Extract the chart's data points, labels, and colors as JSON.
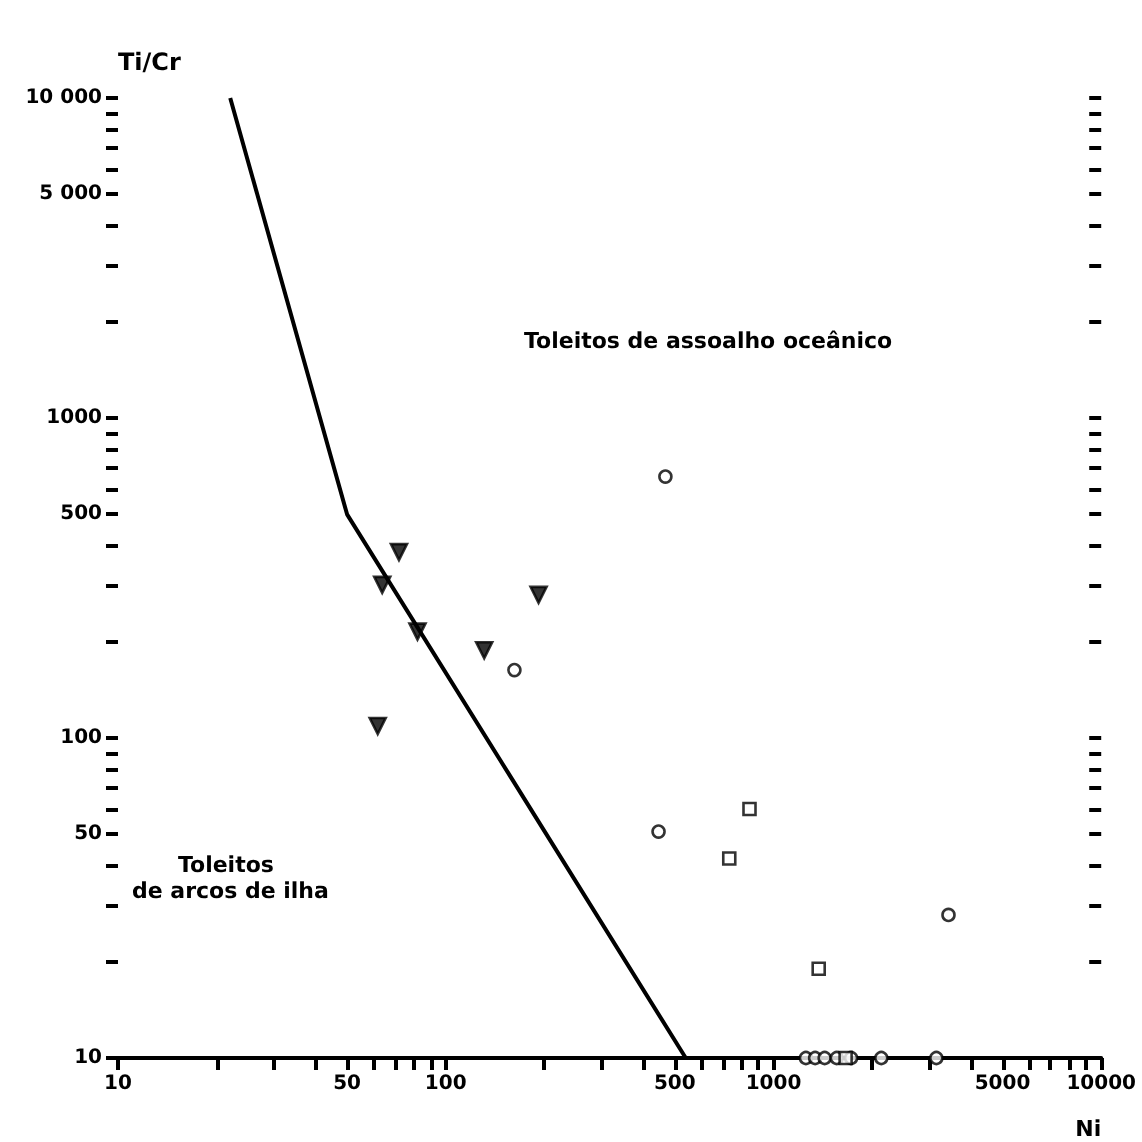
{
  "chart_data": {
    "type": "scatter",
    "xlabel": "Ni",
    "ylabel": "Ti/Cr",
    "annotations": [
      "Toleitos de assoalho oceânico",
      "Toleitos\nde arcos de ilha"
    ],
    "log": "xy",
    "grid": false,
    "xlim": [
      10,
      10000
    ],
    "ylim": [
      10,
      10000
    ],
    "xticks": [
      10,
      {
        "value": 20,
        "label": null
      },
      {
        "value": 30,
        "label": null
      },
      {
        "value": 40,
        "label": null
      },
      50,
      {
        "value": 60,
        "label": null
      },
      {
        "value": 70,
        "label": null
      },
      {
        "value": 80,
        "label": null
      },
      {
        "value": 90,
        "label": null
      },
      100,
      {
        "value": 200,
        "label": null
      },
      {
        "value": 300,
        "label": null
      },
      {
        "value": 400,
        "label": null
      },
      500,
      {
        "value": 600,
        "label": null
      },
      {
        "value": 700,
        "label": null
      },
      {
        "value": 800,
        "label": null
      },
      {
        "value": 900,
        "label": null
      },
      1000,
      {
        "value": 2000,
        "label": null
      },
      {
        "value": 3000,
        "label": null
      },
      {
        "value": 4000,
        "label": null
      },
      5000,
      {
        "value": 6000,
        "label": null
      },
      {
        "value": 7000,
        "label": null
      },
      {
        "value": 8000,
        "label": null
      },
      {
        "value": 9000,
        "label": null
      },
      10000
    ],
    "yticks": [
      10,
      {
        "value": 20,
        "label": null
      },
      {
        "value": 30,
        "label": null
      },
      {
        "value": 40,
        "label": null
      },
      50,
      {
        "value": 60,
        "label": null
      },
      {
        "value": 70,
        "label": null
      },
      {
        "value": 80,
        "label": null
      },
      {
        "value": 90,
        "label": null
      },
      100,
      {
        "value": 200,
        "label": null
      },
      {
        "value": 300,
        "label": null
      },
      {
        "value": 400,
        "label": null
      },
      500,
      {
        "value": 600,
        "label": null
      },
      {
        "value": 700,
        "label": null
      },
      {
        "value": 800,
        "label": null
      },
      {
        "value": 900,
        "label": null
      },
      1000,
      {
        "value": 2000,
        "label": null
      },
      {
        "value": 3000,
        "label": null
      },
      {
        "value": 4000,
        "label": null
      },
      {
        "value": 5000,
        "label": "5 000"
      },
      {
        "value": 6000,
        "label": null
      },
      {
        "value": 7000,
        "label": null
      },
      {
        "value": 8000,
        "label": null
      },
      {
        "value": 9000,
        "label": null
      },
      {
        "value": 10000,
        "label": "10 000"
      }
    ],
    "series": [
      {
        "type": "line",
        "color": "#000000",
        "marker": "none",
        "x": [
          22,
          50,
          540
        ],
        "values": [
          10000,
          500,
          10
        ]
      },
      {
        "type": "scatter",
        "color": "#000000",
        "marker": "triangle",
        "x": [
          72,
          64,
          82,
          131,
          192,
          62
        ],
        "values": [
          381,
          301,
          215,
          188,
          280,
          109
        ]
      },
      {
        "type": "scatter",
        "color": "#000000",
        "marker": "circle",
        "x": [
          468,
          162,
          446,
          3420,
          1256,
          1340,
          1433,
          1560,
          1725,
          2133,
          3140
        ],
        "values": [
          656,
          163,
          51,
          28,
          10,
          10,
          10,
          10,
          10,
          10,
          10
        ]
      },
      {
        "type": "scatter",
        "color": "#000000",
        "marker": "square",
        "x": [
          845,
          733,
          1374,
          1660
        ],
        "values": [
          60,
          42,
          19,
          10
        ]
      }
    ]
  }
}
